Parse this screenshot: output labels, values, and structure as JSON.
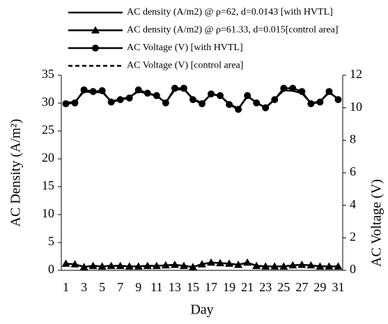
{
  "chart_data": {
    "type": "line",
    "x_label": "Day",
    "y_label": "AC Density (A/m²)",
    "y2_label": "AC Voltage (V)",
    "categories": [
      "1",
      null,
      "3",
      null,
      "5",
      null,
      "7",
      null,
      "9",
      null,
      "11",
      null,
      "13",
      null,
      "15",
      null,
      "17",
      null,
      "19",
      null,
      "21",
      null,
      "23",
      null,
      "25",
      null,
      "27",
      null,
      "29",
      null,
      "31"
    ],
    "ylim": [
      0,
      35
    ],
    "yticks": [
      0,
      5,
      10,
      15,
      20,
      25,
      30,
      35
    ],
    "y2lim": [
      0,
      12
    ],
    "y2ticks": [
      0,
      2,
      4,
      6,
      8,
      10,
      12
    ],
    "grid": false,
    "legend": "top",
    "series": [
      {
        "name": "AC density (A/m2) @ ρ=62, d=0.0143 [with HVTL]",
        "color": "#000000",
        "marker": "none",
        "dash": "solid",
        "axis": "y",
        "values": [
          30.1,
          30.2,
          32.1,
          31.9,
          32.0,
          30.3,
          30.7,
          31.1,
          32.1,
          31.7,
          31.3,
          30.1,
          32.4,
          32.5,
          30.8,
          30.0,
          31.6,
          31.3,
          29.9,
          29.0,
          31.2,
          30.1,
          29.2,
          30.7,
          32.3,
          32.2,
          31.8,
          30.0,
          30.3,
          31.9,
          30.8
        ]
      },
      {
        "name": "AC density (A/m2) @ ρ=61.33, d=0.015[control area]",
        "color": "#000000",
        "marker": "triangle",
        "dash": "solid",
        "axis": "y",
        "values": [
          1.2,
          1.1,
          0.6,
          0.8,
          0.7,
          0.8,
          0.8,
          0.7,
          0.7,
          0.8,
          0.8,
          0.9,
          1.0,
          0.8,
          0.6,
          1.1,
          1.4,
          1.3,
          1.2,
          1.0,
          1.4,
          0.8,
          0.7,
          0.7,
          0.7,
          0.9,
          1.0,
          0.9,
          0.7,
          0.7,
          0.7
        ]
      },
      {
        "name": "AC Voltage (V) [with HVTL]",
        "color": "#000000",
        "marker": "circle",
        "dash": "solid",
        "axis": "y2",
        "values": [
          10.25,
          10.3,
          11.1,
          11.0,
          11.05,
          10.35,
          10.5,
          10.6,
          11.1,
          10.9,
          10.75,
          10.3,
          11.2,
          11.2,
          10.5,
          10.25,
          10.85,
          10.75,
          10.2,
          9.9,
          10.75,
          10.3,
          10.0,
          10.5,
          11.2,
          11.2,
          11.0,
          10.25,
          10.35,
          11.0,
          10.5
        ]
      },
      {
        "name": "AC Voltage (V) [control area]",
        "color": "#000000",
        "marker": "none",
        "dash": "dashed",
        "axis": "y2",
        "values": [
          0.4,
          0.38,
          0.22,
          0.28,
          0.25,
          0.28,
          0.28,
          0.25,
          0.25,
          0.28,
          0.28,
          0.3,
          0.34,
          0.28,
          0.22,
          0.38,
          0.48,
          0.45,
          0.41,
          0.34,
          0.48,
          0.28,
          0.25,
          0.25,
          0.25,
          0.3,
          0.34,
          0.3,
          0.25,
          0.25,
          0.25
        ]
      }
    ]
  }
}
